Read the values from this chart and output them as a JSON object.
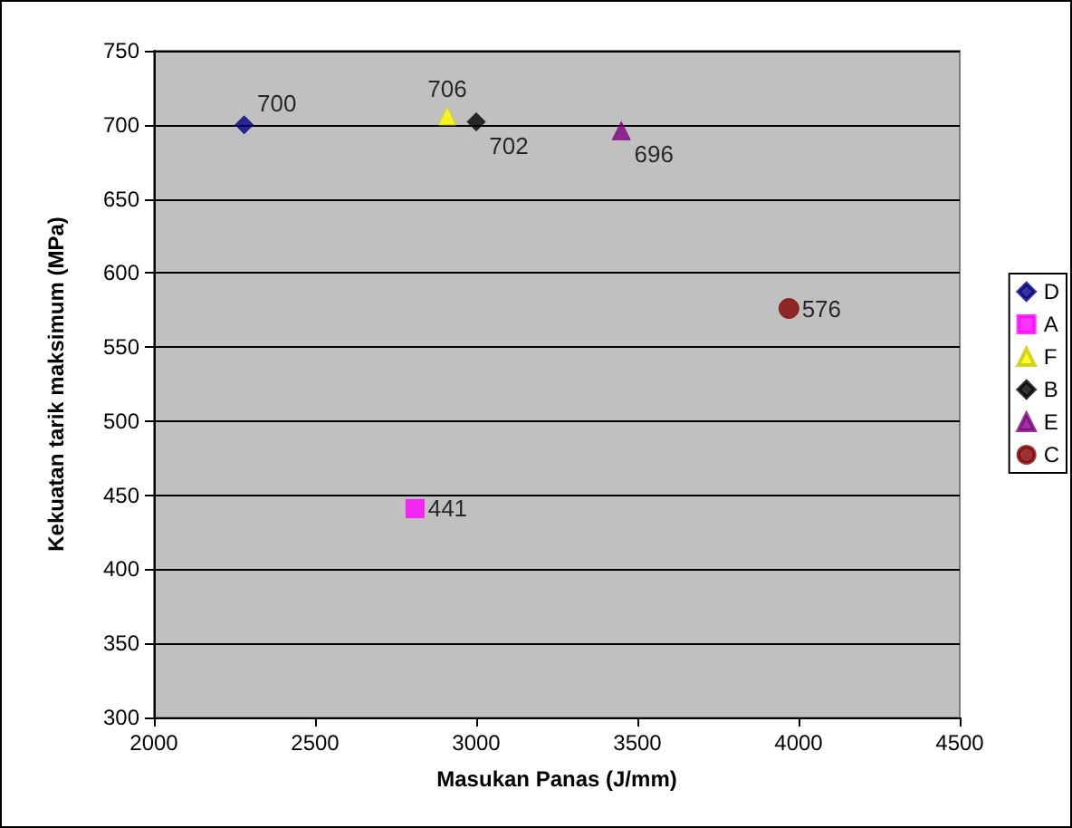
{
  "chart_data": {
    "type": "scatter",
    "xlabel": "Masukan Panas (J/mm)",
    "ylabel": "Kekuatan tarik maksimum (MPa)",
    "xlim": [
      2000,
      4500
    ],
    "xticks": [
      2000,
      2500,
      3000,
      3500,
      4000,
      4500
    ],
    "ylim": [
      300,
      750
    ],
    "yticks": [
      300,
      350,
      400,
      450,
      500,
      550,
      600,
      650,
      700,
      750
    ],
    "grid": "y",
    "legend": "right",
    "data_labels": true,
    "series": [
      {
        "name": "D",
        "color": "#000080",
        "marker": "diamond",
        "x": [
          2280
        ],
        "values": [
          700
        ]
      },
      {
        "name": "A",
        "color": "#ff00ff",
        "marker": "square",
        "x": [
          2810
        ],
        "values": [
          441
        ]
      },
      {
        "name": "F",
        "color": "#ffff00",
        "marker": "triangle",
        "x": [
          2910
        ],
        "values": [
          706
        ]
      },
      {
        "name": "B",
        "color": "#000000",
        "marker": "diamond",
        "x": [
          3000
        ],
        "values": [
          702
        ]
      },
      {
        "name": "E",
        "color": "#800080",
        "marker": "triangle",
        "x": [
          3450
        ],
        "values": [
          696
        ]
      },
      {
        "name": "C",
        "color": "#800000",
        "marker": "circle",
        "x": [
          3970
        ],
        "values": [
          576
        ]
      }
    ]
  }
}
